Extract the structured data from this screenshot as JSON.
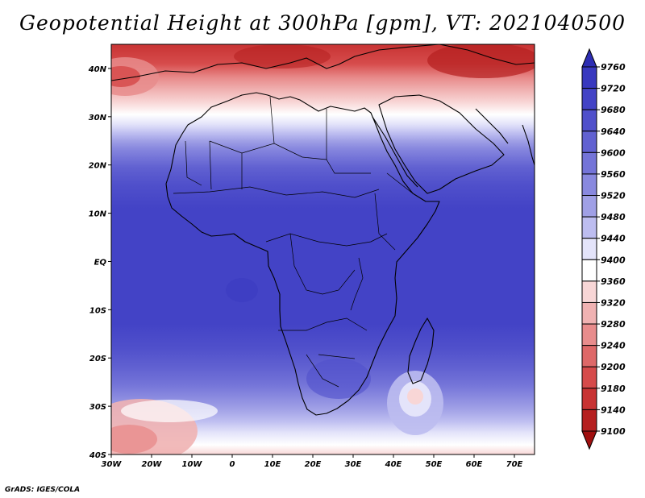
{
  "title": "Geopotential Height at 300hPa [gpm], VT: 2021040500",
  "credit": "GrADS: IGES/COLA",
  "map": {
    "lon_range": [
      -30,
      75
    ],
    "lat_range": [
      -40,
      45
    ],
    "lat_ticks": [
      {
        "value": 40,
        "label": "40N"
      },
      {
        "value": 30,
        "label": "30N"
      },
      {
        "value": 20,
        "label": "20N"
      },
      {
        "value": 10,
        "label": "10N"
      },
      {
        "value": 0,
        "label": "EQ"
      },
      {
        "value": -10,
        "label": "10S"
      },
      {
        "value": -20,
        "label": "20S"
      },
      {
        "value": -30,
        "label": "30S"
      },
      {
        "value": -40,
        "label": "40S"
      }
    ],
    "lon_ticks": [
      {
        "value": -30,
        "label": "30W"
      },
      {
        "value": -20,
        "label": "20W"
      },
      {
        "value": -10,
        "label": "10W"
      },
      {
        "value": 0,
        "label": "0"
      },
      {
        "value": 10,
        "label": "10E"
      },
      {
        "value": 20,
        "label": "20E"
      },
      {
        "value": 30,
        "label": "30E"
      },
      {
        "value": 40,
        "label": "40E"
      },
      {
        "value": 50,
        "label": "50E"
      },
      {
        "value": 60,
        "label": "60E"
      },
      {
        "value": 70,
        "label": "70E"
      }
    ]
  },
  "colorbar": {
    "levels": [
      "9760",
      "9720",
      "9680",
      "9640",
      "9600",
      "9560",
      "9520",
      "9480",
      "9440",
      "9400",
      "9360",
      "9320",
      "9280",
      "9240",
      "9200",
      "9180",
      "9140",
      "9100"
    ],
    "colors": [
      "#2d2db3",
      "#3838bf",
      "#4343c6",
      "#5050cb",
      "#6161d1",
      "#7474d8",
      "#8989df",
      "#a0a0e6",
      "#bdbdf0",
      "#e4e4fa",
      "#ffffff",
      "#f8d6d6",
      "#f0b2b2",
      "#e88c8c",
      "#de6868",
      "#d64b4b",
      "#c83333",
      "#b51f1f",
      "#a00f0f"
    ]
  },
  "field_bands": [
    {
      "lat": 45,
      "color": "#c83333"
    },
    {
      "lat": 41,
      "color": "#d64b4b"
    },
    {
      "lat": 38,
      "color": "#e88c8c"
    },
    {
      "lat": 35.5,
      "color": "#f0b2b2"
    },
    {
      "lat": 33,
      "color": "#f8d6d6"
    },
    {
      "lat": 30.5,
      "color": "#ffffff"
    },
    {
      "lat": 28.5,
      "color": "#e4e4fa"
    },
    {
      "lat": 26.5,
      "color": "#bdbdf0"
    },
    {
      "lat": 25,
      "color": "#a0a0e6"
    },
    {
      "lat": 23.5,
      "color": "#8989df"
    },
    {
      "lat": 21.5,
      "color": "#7474d8"
    },
    {
      "lat": 19.5,
      "color": "#6161d1"
    },
    {
      "lat": 16,
      "color": "#5050cb"
    },
    {
      "lat": 11,
      "color": "#4343c6"
    },
    {
      "lat": -13,
      "color": "#4343c6"
    },
    {
      "lat": -18,
      "color": "#5050cb"
    },
    {
      "lat": -22,
      "color": "#6161d1"
    },
    {
      "lat": -25.5,
      "color": "#7474d8"
    },
    {
      "lat": -28,
      "color": "#8989df"
    },
    {
      "lat": -30.5,
      "color": "#a0a0e6"
    },
    {
      "lat": -33,
      "color": "#bdbdf0"
    },
    {
      "lat": -35.5,
      "color": "#e4e4fa"
    },
    {
      "lat": -38,
      "color": "#ffffff"
    },
    {
      "lat": -40,
      "color": "#f8d6d6"
    }
  ]
}
